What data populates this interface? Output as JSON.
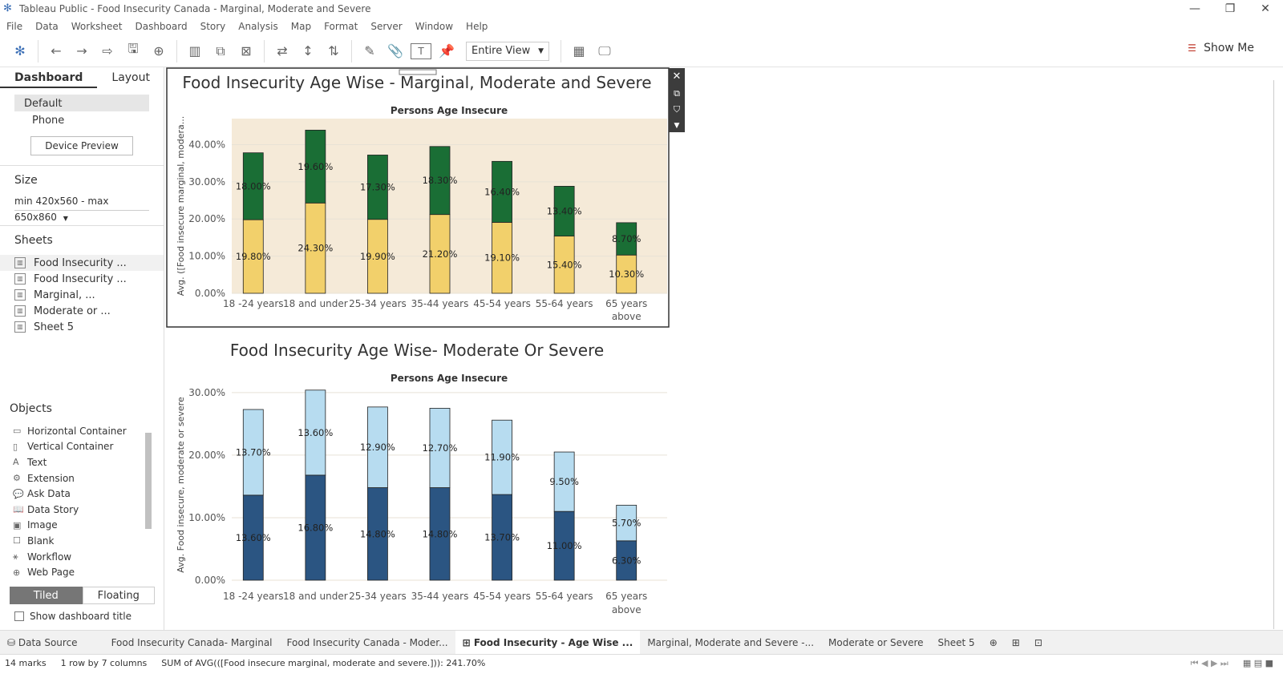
{
  "window": {
    "title": "Tableau Public - Food Insecurity Canada - Marginal, Moderate and Severe"
  },
  "menu": [
    "File",
    "Data",
    "Worksheet",
    "Dashboard",
    "Story",
    "Analysis",
    "Map",
    "Format",
    "Server",
    "Window",
    "Help"
  ],
  "toolbar": {
    "view_value": "Entire View",
    "show_me": "Show Me"
  },
  "left_panel": {
    "tabs": [
      "Dashboard",
      "Layout"
    ],
    "devices": [
      "Default",
      "Phone"
    ],
    "device_preview": "Device Preview",
    "size_title": "Size",
    "size_value": "min 420x560 - max 650x860",
    "sheets_title": "Sheets",
    "sheets": [
      "Food Insecurity ...",
      "Food Insecurity ...",
      "Marginal, ...",
      "Moderate or ...",
      "Sheet 5"
    ],
    "objects_title": "Objects",
    "objects": [
      "Horizontal Container",
      "Vertical Container",
      "Text",
      "Extension",
      "Ask Data",
      "Data Story",
      "Image",
      "Blank",
      "Workflow",
      "Web Page"
    ],
    "tiled": "Tiled",
    "floating": "Floating",
    "show_title": "Show dashboard title"
  },
  "bottom_tabs": [
    "Data Source",
    "Food Insecurity Canada- Marginal",
    "Food Insecurity Canada - Moder...",
    "Food Insecurity - Age Wise ...",
    "Marginal, Moderate and Severe -...",
    "Moderate or Severe",
    "Sheet 5"
  ],
  "status": {
    "marks": "14 marks",
    "layout": "1 row by 7 columns",
    "summary": "SUM of AVG(([Food insecure marginal, moderate and severe.])): 241.70%"
  },
  "chart_data": [
    {
      "type": "bar",
      "title": "Food Insecurity Age Wise - Marginal, Moderate and Severe",
      "subtitle": "Persons Age Insecure",
      "ylabel": "Avg. ([Food insecure marginal, modera...",
      "categories": [
        "18 -24 years",
        "18 and under",
        "25-34 years",
        "35-44 years",
        "45-54 years",
        "55-64 years",
        "65 years above"
      ],
      "series": [
        {
          "values": [
            19.8,
            24.3,
            19.9,
            21.2,
            19.1,
            15.4,
            10.3
          ],
          "labels": [
            "19.80%",
            "24.30%",
            "19.90%",
            "21.20%",
            "19.10%",
            "15.40%",
            "10.30%"
          ],
          "color": "#f2d06b"
        },
        {
          "values": [
            18.0,
            19.6,
            17.3,
            18.3,
            16.4,
            13.4,
            8.7
          ],
          "labels": [
            "18.00%",
            "19.60%",
            "17.30%",
            "18.30%",
            "16.40%",
            "13.40%",
            "8.70%"
          ],
          "color": "#1a6e35"
        }
      ],
      "yticks": [
        "0.00%",
        "10.00%",
        "20.00%",
        "30.00%",
        "40.00%"
      ],
      "ylim": [
        0,
        47
      ],
      "background": "#f5ead8"
    },
    {
      "type": "bar",
      "title": "Food Insecurity Age Wise- Moderate Or Severe",
      "subtitle": "Persons Age Insecure",
      "ylabel": "Avg. Food insecure, moderate or severe",
      "categories": [
        "18 -24 years",
        "18 and under",
        "25-34 years",
        "35-44 years",
        "45-54 years",
        "55-64 years",
        "65 years above"
      ],
      "series": [
        {
          "values": [
            13.6,
            16.8,
            14.8,
            14.8,
            13.7,
            11.0,
            6.3
          ],
          "labels": [
            "13.60%",
            "16.80%",
            "14.80%",
            "14.80%",
            "13.70%",
            "11.00%",
            "6.30%"
          ],
          "color": "#2b5582"
        },
        {
          "values": [
            13.7,
            13.6,
            12.9,
            12.7,
            11.9,
            9.5,
            5.7
          ],
          "labels": [
            "13.70%",
            "13.60%",
            "12.90%",
            "12.70%",
            "11.90%",
            "9.50%",
            "5.70%"
          ],
          "color": "#b7dcf0"
        }
      ],
      "yticks": [
        "0.00%",
        "10.00%",
        "20.00%",
        "30.00%"
      ],
      "ylim": [
        0,
        30.5
      ],
      "background": "#ffffff"
    }
  ]
}
